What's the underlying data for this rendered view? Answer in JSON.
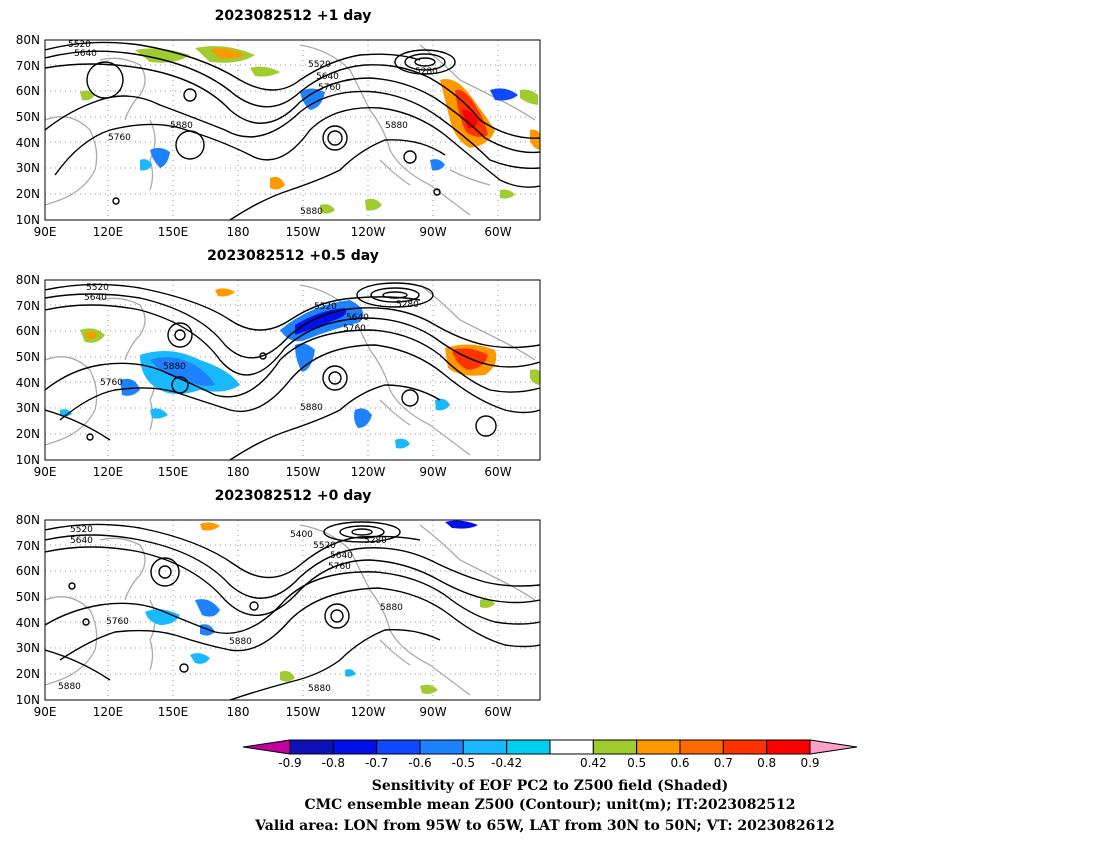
{
  "figure": {
    "panels": [
      {
        "id": "p1",
        "title": "2023082512  +1 day",
        "contour_labels": [
          "5520",
          "5640",
          "5760",
          "5880",
          "5520",
          "5640",
          "5760",
          "5880",
          "5880",
          "5280"
        ]
      },
      {
        "id": "p2",
        "title": "2023082512  +0.5 day",
        "contour_labels": [
          "5520",
          "5640",
          "5760",
          "5880",
          "5520",
          "5640",
          "5760",
          "5880",
          "5280"
        ]
      },
      {
        "id": "p3",
        "title": "2023082512  +0 day",
        "contour_labels": [
          "5520",
          "5640",
          "5760",
          "5400",
          "5520",
          "5640",
          "5760",
          "5880",
          "5880",
          "5880",
          "5880",
          "5280"
        ]
      }
    ],
    "lat_ticks": [
      "80N",
      "70N",
      "60N",
      "50N",
      "40N",
      "30N",
      "20N",
      "10N"
    ],
    "lon_ticks": [
      "90E",
      "120E",
      "150E",
      "180",
      "150W",
      "120W",
      "90W",
      "60W"
    ],
    "colorbar": {
      "labels": [
        "-0.9",
        "-0.8",
        "-0.7",
        "-0.6",
        "-0.5",
        "-0.42",
        "0.42",
        "0.5",
        "0.6",
        "0.7",
        "0.8",
        "0.9"
      ],
      "colors": [
        "#c000a0",
        "#1010b8",
        "#0010e8",
        "#1048ff",
        "#1e82ff",
        "#1ab8ff",
        "#00d0f0",
        "#ffffff",
        "#a0cc30",
        "#ff9900",
        "#ff6a00",
        "#ff3300",
        "#ff0000",
        "#ffa0c8"
      ]
    },
    "caption": {
      "line1": "Sensitivity of EOF PC2 to Z500 field (Shaded)",
      "line2": "CMC ensemble mean Z500 (Contour); unit(m); IT:2023082512",
      "line3": "Valid area: LON from 95W to 65W, LAT from 30N to 50N; VT: 2023082612"
    }
  },
  "map_data": {
    "projection": "equirectangular",
    "lon_range": [
      "90E",
      "50W"
    ],
    "lat_range": [
      "10N",
      "80N"
    ],
    "contour_field": "Z500",
    "contour_unit": "m",
    "shaded_field": "Sensitivity of EOF PC2 to Z500"
  }
}
